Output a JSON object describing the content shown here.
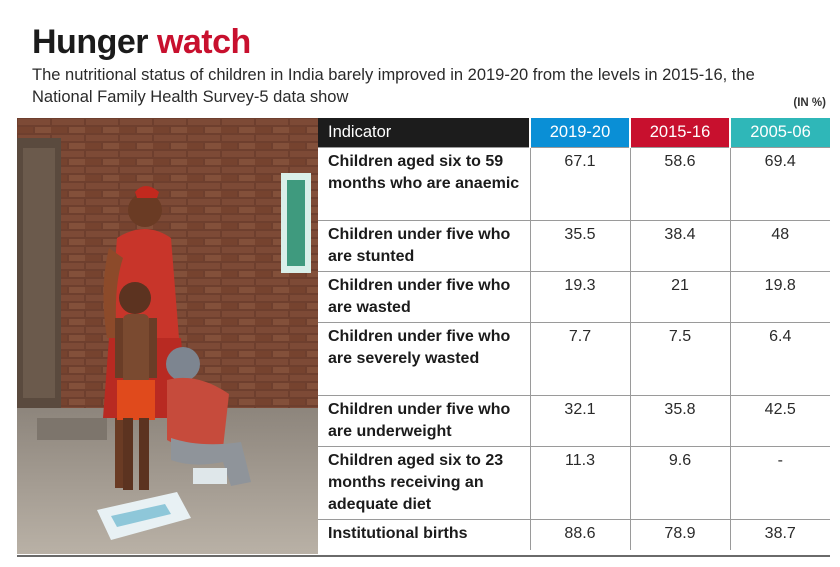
{
  "header": {
    "title_main": "Hunger",
    "title_accent": "watch",
    "subtitle": "The nutritional status of children in India barely improved in 2019-20 from the levels in 2015-16, the National Family Health Survey-5 data show",
    "unit": "(IN %)"
  },
  "colors": {
    "accent_red": "#c8102e",
    "header_dark": "#1c1c1c",
    "year_2019_20": "#0a8fd6",
    "year_2015_16": "#c8102e",
    "year_2005_06": "#2fb7b8"
  },
  "table": {
    "columns": [
      "Indicator",
      "2019-20",
      "2015-16",
      "2005-06"
    ],
    "rows": [
      {
        "label": "Children aged six to 59 months who are anaemic",
        "v1": "67.1",
        "v2": "58.6",
        "v3": "69.4"
      },
      {
        "label": "Children under five who are stunted",
        "v1": "35.5",
        "v2": "38.4",
        "v3": "48"
      },
      {
        "label": "Children under five who are wasted",
        "v1": "19.3",
        "v2": "21",
        "v3": "19.8"
      },
      {
        "label": "Children under five who are severely wasted",
        "v1": "7.7",
        "v2": "7.5",
        "v3": "6.4"
      },
      {
        "label": "Children under five who are underweight",
        "v1": "32.1",
        "v2": "35.8",
        "v3": "42.5"
      },
      {
        "label": "Children aged six to 23 months receiving an adequate diet",
        "v1": "11.3",
        "v2": "9.6",
        "v3": "-"
      },
      {
        "label": "Institutional births",
        "v1": "88.6",
        "v2": "78.9",
        "v3": "38.7"
      }
    ]
  }
}
